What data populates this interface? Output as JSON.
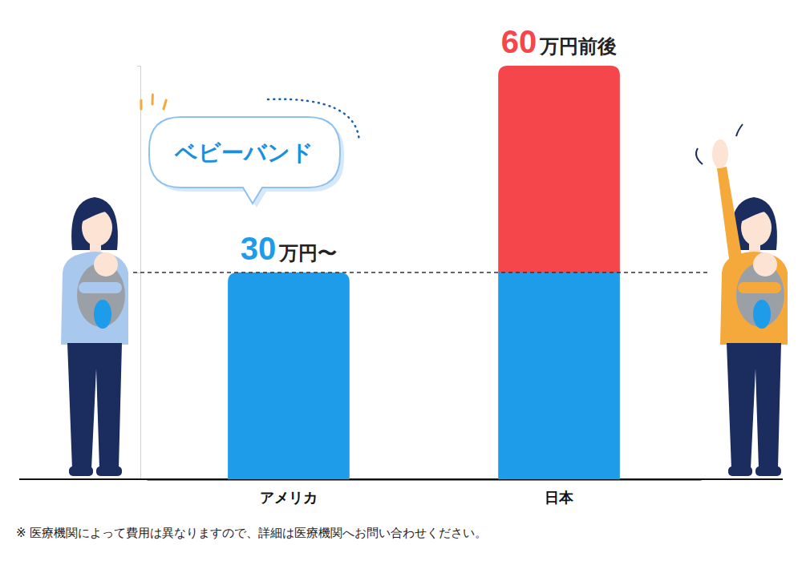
{
  "chart_data": {
    "type": "bar",
    "categories": [
      "アメリカ",
      "日本"
    ],
    "stacked": true,
    "series": [
      {
        "color": "#1e9be9",
        "values": [
          30,
          30
        ]
      },
      {
        "color": "#f5464b",
        "values": [
          0,
          30
        ]
      }
    ],
    "total_labels": [
      "30万円〜",
      "60万円前後"
    ],
    "reference_line": {
      "value": 30,
      "line_style": "dashed"
    },
    "annotations": [
      {
        "text": "ベビーバンド",
        "category": "アメリカ"
      }
    ],
    "ylim": [
      0,
      60
    ],
    "yticks": [
      0,
      30,
      60
    ],
    "tick_labels": "x",
    "grid": false,
    "note": "※ 医療機関によって費用は異なりますので、詳細は医療機関へお問い合わせください。"
  }
}
